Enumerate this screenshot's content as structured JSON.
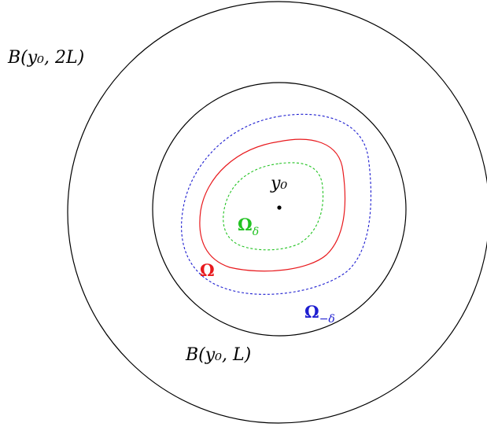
{
  "labels": {
    "outer_ball": "B(y₀, 2L)",
    "inner_ball": "B(y₀, L)",
    "center": "y₀",
    "omega": "Ω",
    "omega_delta": "Ω",
    "omega_delta_sub": "δ",
    "omega_minus_delta": "Ω",
    "omega_minus_delta_sub": "−δ"
  },
  "colors": {
    "balls": "#000000",
    "omega": "#e8191d",
    "omega_delta": "#22c322",
    "omega_minus_delta": "#1d1dd0"
  }
}
